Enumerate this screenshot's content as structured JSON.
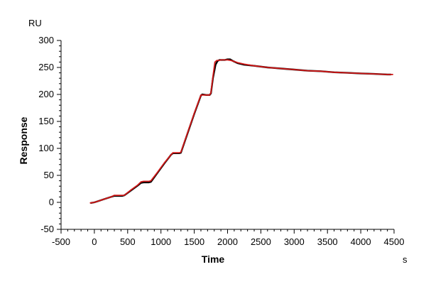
{
  "chart_data": {
    "type": "line",
    "xlabel": "Time",
    "ylabel": "Response",
    "x_unit": "s",
    "y_unit": "RU",
    "xlim": [
      -500,
      4500
    ],
    "ylim": [
      -50,
      300
    ],
    "xticks": [
      -500,
      0,
      500,
      1000,
      1500,
      2000,
      2500,
      3000,
      3500,
      4000,
      4500
    ],
    "yticks": [
      -50,
      0,
      50,
      100,
      150,
      200,
      250,
      300
    ],
    "grid": false,
    "series": [
      {
        "color": "#000000",
        "x": [
          -50,
          0,
          50,
          150,
          250,
          300,
          350,
          420,
          450,
          550,
          650,
          700,
          740,
          780,
          820,
          850,
          950,
          1050,
          1150,
          1180,
          1230,
          1280,
          1300,
          1400,
          1500,
          1600,
          1620,
          1680,
          1730,
          1750,
          1780,
          1820,
          1850,
          1880,
          1920,
          1960,
          2000,
          2040,
          2080,
          2150,
          2250,
          2400,
          2600,
          2800,
          3000,
          3200,
          3400,
          3600,
          3800,
          4000,
          4200,
          4400,
          4450
        ],
        "y": [
          -1,
          0,
          2,
          6,
          10,
          12,
          12,
          12,
          13,
          22,
          31,
          36,
          37,
          37,
          37,
          38,
          55,
          72,
          88,
          91,
          91,
          91,
          92,
          128,
          164,
          198,
          200,
          199,
          199,
          202,
          230,
          255,
          262,
          264,
          264,
          264,
          265,
          265,
          262,
          258,
          255,
          253,
          250,
          248,
          246,
          244,
          243,
          241,
          240,
          239,
          238,
          237,
          237
        ]
      },
      {
        "color": "#d01818",
        "x": [
          -60,
          0,
          50,
          150,
          250,
          300,
          350,
          420,
          450,
          550,
          650,
          700,
          740,
          780,
          820,
          850,
          950,
          1050,
          1150,
          1180,
          1230,
          1280,
          1300,
          1400,
          1500,
          1600,
          1620,
          1680,
          1730,
          1750,
          1780,
          1810,
          1840,
          1870,
          1900,
          1950,
          2000,
          2050,
          2100,
          2150,
          2250,
          2400,
          2600,
          2800,
          3000,
          3200,
          3400,
          3600,
          3800,
          4000,
          4200,
          4400,
          4480
        ],
        "y": [
          -1,
          0,
          2,
          6,
          10,
          13,
          13,
          13,
          13,
          23,
          32,
          38,
          39,
          39,
          39,
          40,
          56,
          73,
          88,
          92,
          92,
          92,
          93,
          129,
          165,
          199,
          199,
          199,
          199,
          203,
          233,
          260,
          263,
          263,
          264,
          264,
          264,
          263,
          261,
          259,
          256,
          253,
          250,
          248,
          246,
          244,
          243,
          241,
          240,
          239,
          238,
          237,
          237
        ]
      }
    ]
  }
}
